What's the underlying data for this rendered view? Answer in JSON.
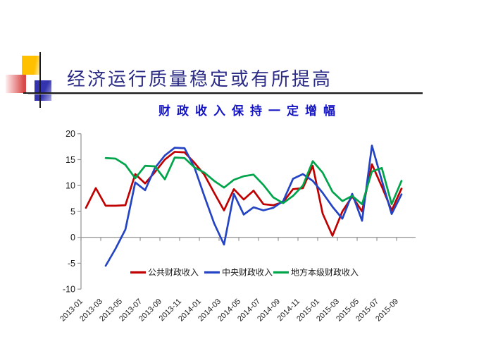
{
  "slide": {
    "title": "经济运行质量稳定或有所提高",
    "subtitle": "财政收入保持一定增幅"
  },
  "decoration_colors": {
    "yellow_square": "#ffc000",
    "blue_square": "#3434ae",
    "red_square": "#d94848",
    "title_color": "#2c2c87",
    "subtitle_color": "#1515c4"
  },
  "chart_data": {
    "type": "line",
    "title": "财政收入保持一定增幅",
    "xlabel": "",
    "ylabel": "",
    "ylim": [
      -10,
      20
    ],
    "y_ticks": [
      20,
      15,
      10,
      5,
      0,
      -5,
      -10
    ],
    "grid": false,
    "legend_position": "bottom-center-inside",
    "x_tick_labels": [
      "2013-01",
      "2013-03",
      "2013-05",
      "2013-07",
      "2013-09",
      "2013-11",
      "2014-01",
      "2014-03",
      "2014-05",
      "2014-07",
      "2014-09",
      "2014-11",
      "2015-01",
      "2015-03",
      "2015-05",
      "2015-07",
      "2015-09"
    ],
    "months": [
      "2013-01",
      "2013-02",
      "2013-03",
      "2013-04",
      "2013-05",
      "2013-06",
      "2013-07",
      "2013-08",
      "2013-09",
      "2013-10",
      "2013-11",
      "2013-12",
      "2014-01",
      "2014-02",
      "2014-03",
      "2014-04",
      "2014-05",
      "2014-06",
      "2014-07",
      "2014-08",
      "2014-09",
      "2014-10",
      "2014-11",
      "2014-12",
      "2015-01",
      "2015-02",
      "2015-03",
      "2015-04",
      "2015-05",
      "2015-06",
      "2015-07",
      "2015-08",
      "2015-09"
    ],
    "series": [
      {
        "name": "公共财政收入",
        "color": "#c00000",
        "values": [
          5.7,
          9.5,
          6.1,
          6.1,
          6.2,
          12.2,
          10.4,
          12.6,
          15.0,
          16.5,
          16.4,
          14.4,
          12.1,
          8.6,
          5.2,
          9.3,
          7.3,
          9.0,
          6.4,
          6.2,
          6.8,
          9.3,
          9.5,
          13.8,
          4.6,
          0.3,
          5.0,
          7.9,
          5.0,
          14.1,
          9.8,
          5.2,
          9.4
        ]
      },
      {
        "name": "中央财政收入",
        "color": "#2444c4",
        "values": [
          null,
          null,
          -5.5,
          -2.2,
          1.5,
          10.6,
          9.1,
          13.4,
          15.8,
          17.3,
          17.2,
          13.5,
          8.0,
          2.7,
          -1.4,
          8.4,
          4.4,
          5.8,
          5.2,
          5.7,
          7.0,
          11.3,
          12.2,
          10.9,
          8.6,
          5.9,
          3.6,
          8.4,
          3.2,
          17.7,
          11.0,
          4.5,
          8.3
        ]
      },
      {
        "name": "地方本级财政收入",
        "color": "#00a44a",
        "values": [
          null,
          null,
          15.3,
          15.2,
          14.0,
          11.4,
          13.8,
          13.7,
          11.2,
          15.4,
          15.3,
          13.5,
          12.5,
          10.9,
          9.6,
          11.1,
          11.8,
          12.1,
          10.1,
          7.7,
          6.6,
          8.0,
          10.0,
          14.7,
          12.5,
          8.8,
          7.0,
          8.0,
          6.4,
          12.7,
          13.4,
          6.4,
          10.9
        ]
      }
    ]
  }
}
